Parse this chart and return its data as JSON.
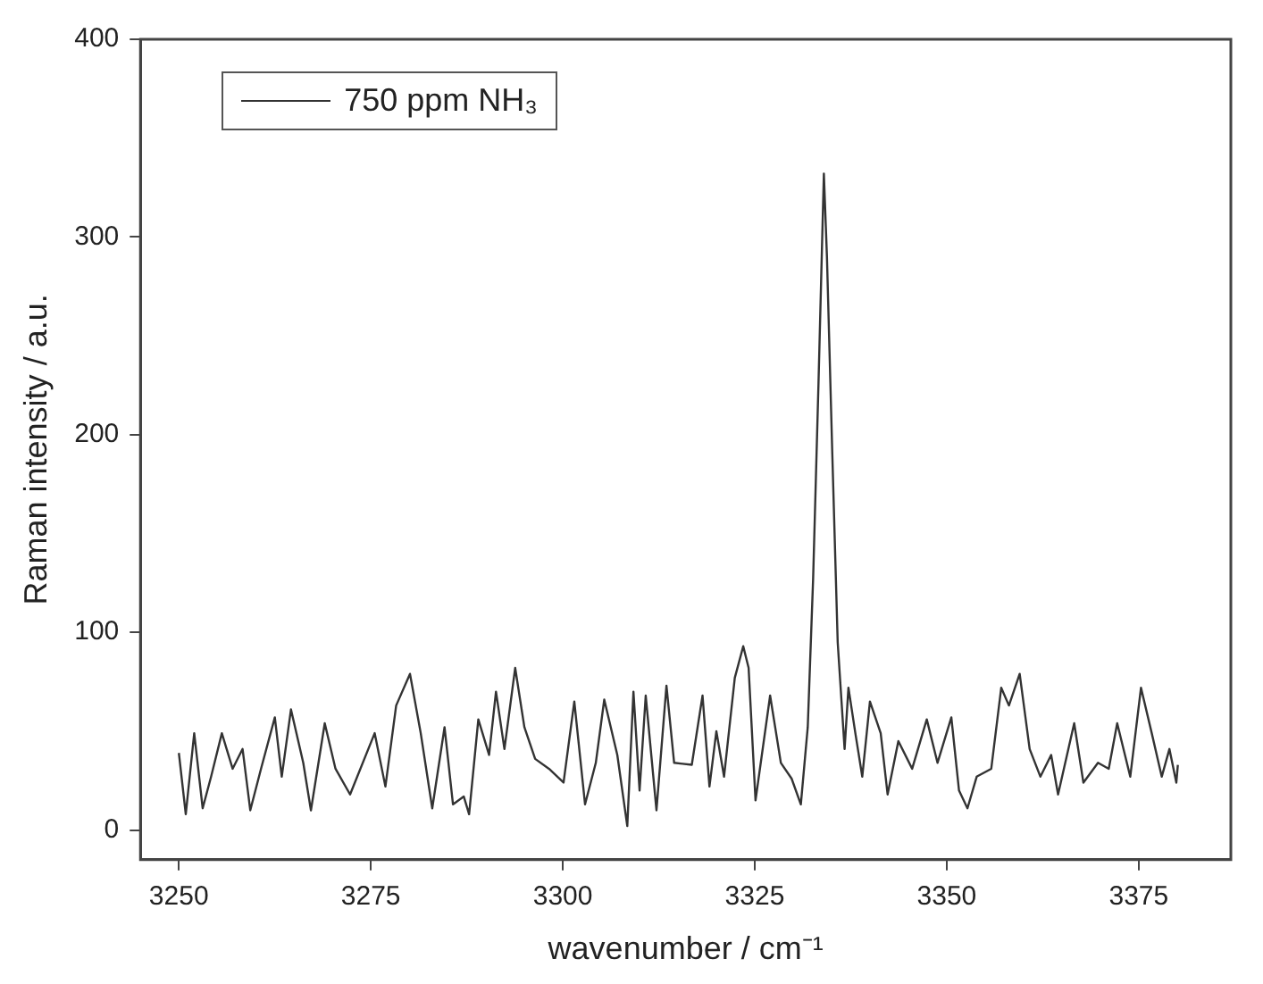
{
  "chart_data": {
    "type": "line",
    "xlabel": "wavenumber / cm⁻¹",
    "ylabel": "Raman intensity / a.u.",
    "legend": "top left",
    "xlim": [
      3245,
      3387
    ],
    "xticks": [
      3250,
      3275,
      3300,
      3325,
      3350,
      3375
    ],
    "ylim": [
      -15,
      400
    ],
    "yticks": [
      0,
      100,
      200,
      300,
      400
    ],
    "series": [
      {
        "name": "750 ppm NH₃",
        "color": "#333333",
        "x": [
          3250,
          3250.9,
          3252,
          3253.1,
          3254.2,
          3255.6,
          3257,
          3258.3,
          3259.3,
          3260.7,
          3262.5,
          3263.4,
          3264.6,
          3266.2,
          3267.2,
          3269,
          3270.4,
          3272.3,
          3275.5,
          3276.9,
          3278.3,
          3280.1,
          3281.5,
          3283,
          3284.6,
          3285.7,
          3287.1,
          3287.8,
          3289,
          3290.4,
          3291.3,
          3292.4,
          3293.8,
          3295,
          3296.4,
          3298.2,
          3300.1,
          3301.5,
          3302.9,
          3304.3,
          3305.4,
          3307.1,
          3308.4,
          3309.2,
          3310,
          3310.8,
          3312.2,
          3313.5,
          3314.5,
          3316.8,
          3318.2,
          3319.1,
          3320,
          3321,
          3322.4,
          3323.5,
          3324.2,
          3325.1,
          3327,
          3328.4,
          3329.8,
          3331,
          3331.9,
          3332.6,
          3333.3,
          3334,
          3334.4,
          3335.1,
          3335.8,
          3336.7,
          3337.2,
          3338.1,
          3339,
          3340,
          3341.4,
          3342.3,
          3343.7,
          3345.5,
          3347.4,
          3348.8,
          3350.6,
          3351.6,
          3352.7,
          3353.9,
          3355.8,
          3357.1,
          3358.1,
          3359.5,
          3360.8,
          3362.2,
          3363.6,
          3364.5,
          3366.6,
          3367.8,
          3369.7,
          3371.1,
          3372.2,
          3373.9,
          3375.3,
          3376.7,
          3378,
          3379,
          3379.9,
          3380.1
        ],
        "values": [
          39,
          8,
          49,
          11,
          27,
          49,
          31,
          41,
          10,
          31,
          57,
          27,
          61,
          34,
          10,
          54,
          31,
          18,
          49,
          22,
          63,
          79,
          49,
          11,
          52,
          13,
          17,
          8,
          56,
          38,
          70,
          41,
          82,
          52,
          36,
          31,
          24,
          65,
          13,
          34,
          66,
          38,
          2,
          70,
          20,
          68,
          10,
          73,
          34,
          33,
          68,
          22,
          50,
          27,
          77,
          93,
          82,
          15,
          68,
          34,
          26,
          13,
          52,
          127,
          226,
          332,
          290,
          190,
          95,
          41,
          72,
          49,
          27,
          65,
          49,
          18,
          45,
          31,
          56,
          34,
          57,
          20,
          11,
          27,
          31,
          72,
          63,
          79,
          41,
          27,
          38,
          18,
          54,
          24,
          34,
          31,
          54,
          27,
          72,
          49,
          27,
          41,
          24,
          33
        ]
      }
    ]
  }
}
